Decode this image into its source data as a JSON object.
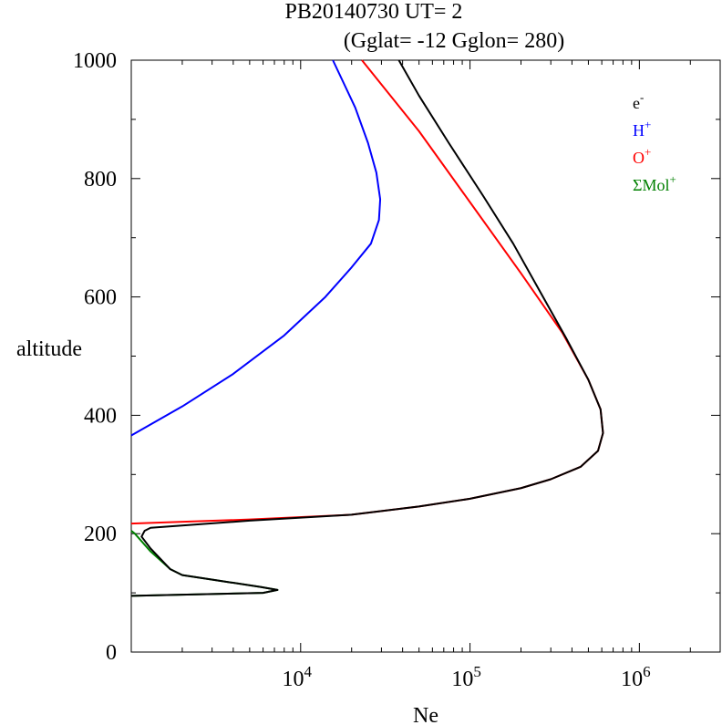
{
  "chart_data": {
    "type": "line",
    "title_line1": "PB20140730   UT=  2",
    "title_line2": "(Gglat= -12   Gglon=  280)",
    "xlabel": "Ne",
    "ylabel": "altitude",
    "x_scale": "log",
    "xlim": [
      1000,
      3000000
    ],
    "ylim": [
      0,
      1000
    ],
    "x_major_ticks": [
      {
        "value": 10000,
        "base": "10",
        "exp": "4"
      },
      {
        "value": 100000,
        "base": "10",
        "exp": "5"
      },
      {
        "value": 1000000,
        "base": "10",
        "exp": "6"
      }
    ],
    "y_ticks": [
      {
        "value": 0,
        "label": "0"
      },
      {
        "value": 200,
        "label": "200"
      },
      {
        "value": 400,
        "label": "400"
      },
      {
        "value": 600,
        "label": "600"
      },
      {
        "value": 800,
        "label": "800"
      },
      {
        "value": 1000,
        "label": "1000"
      }
    ],
    "grid": false,
    "legend_placement": "top-right",
    "series": [
      {
        "name": "e",
        "sup": "-",
        "color": "#000000",
        "points": [
          [
            1000,
            95
          ],
          [
            6000,
            100
          ],
          [
            7300,
            105
          ],
          [
            5800,
            110
          ],
          [
            2000,
            130
          ],
          [
            1700,
            140
          ],
          [
            1300,
            175
          ],
          [
            1150,
            195
          ],
          [
            1200,
            205
          ],
          [
            1300,
            210
          ],
          [
            5000,
            222
          ],
          [
            20000,
            232
          ],
          [
            50000,
            246
          ],
          [
            100000,
            259
          ],
          [
            200000,
            277
          ],
          [
            300000,
            292
          ],
          [
            450000,
            313
          ],
          [
            570000,
            340
          ],
          [
            610000,
            370
          ],
          [
            590000,
            410
          ],
          [
            500000,
            460
          ],
          [
            370000,
            530
          ],
          [
            270000,
            600
          ],
          [
            180000,
            690
          ],
          [
            120000,
            770
          ],
          [
            75000,
            860
          ],
          [
            50000,
            940
          ],
          [
            38000,
            1000
          ]
        ]
      },
      {
        "name": "H",
        "sup": "+",
        "color": "#0000ff",
        "points": [
          [
            1000,
            366
          ],
          [
            2000,
            415
          ],
          [
            4000,
            470
          ],
          [
            8000,
            535
          ],
          [
            14000,
            600
          ],
          [
            20000,
            650
          ],
          [
            26000,
            690
          ],
          [
            29000,
            730
          ],
          [
            29500,
            765
          ],
          [
            28000,
            810
          ],
          [
            25000,
            860
          ],
          [
            21000,
            920
          ],
          [
            15500,
            1000
          ]
        ]
      },
      {
        "name": "O",
        "sup": "+",
        "color": "#ff0000",
        "points": [
          [
            1000,
            217
          ],
          [
            5000,
            224
          ],
          [
            20000,
            232
          ],
          [
            50000,
            246
          ],
          [
            100000,
            259
          ],
          [
            200000,
            277
          ],
          [
            300000,
            292
          ],
          [
            450000,
            313
          ],
          [
            570000,
            340
          ],
          [
            610000,
            370
          ],
          [
            590000,
            410
          ],
          [
            500000,
            460
          ],
          [
            350000,
            540
          ],
          [
            200000,
            640
          ],
          [
            100000,
            760
          ],
          [
            50000,
            880
          ],
          [
            23000,
            1000
          ]
        ]
      },
      {
        "name": "ΣMol",
        "sup": "+",
        "color": "#008000",
        "points": [
          [
            1000,
            95
          ],
          [
            6000,
            100
          ],
          [
            7300,
            105
          ],
          [
            5800,
            110
          ],
          [
            2000,
            130
          ],
          [
            1700,
            140
          ],
          [
            1300,
            170
          ],
          [
            1050,
            200
          ],
          [
            1000,
            205
          ]
        ]
      }
    ]
  }
}
